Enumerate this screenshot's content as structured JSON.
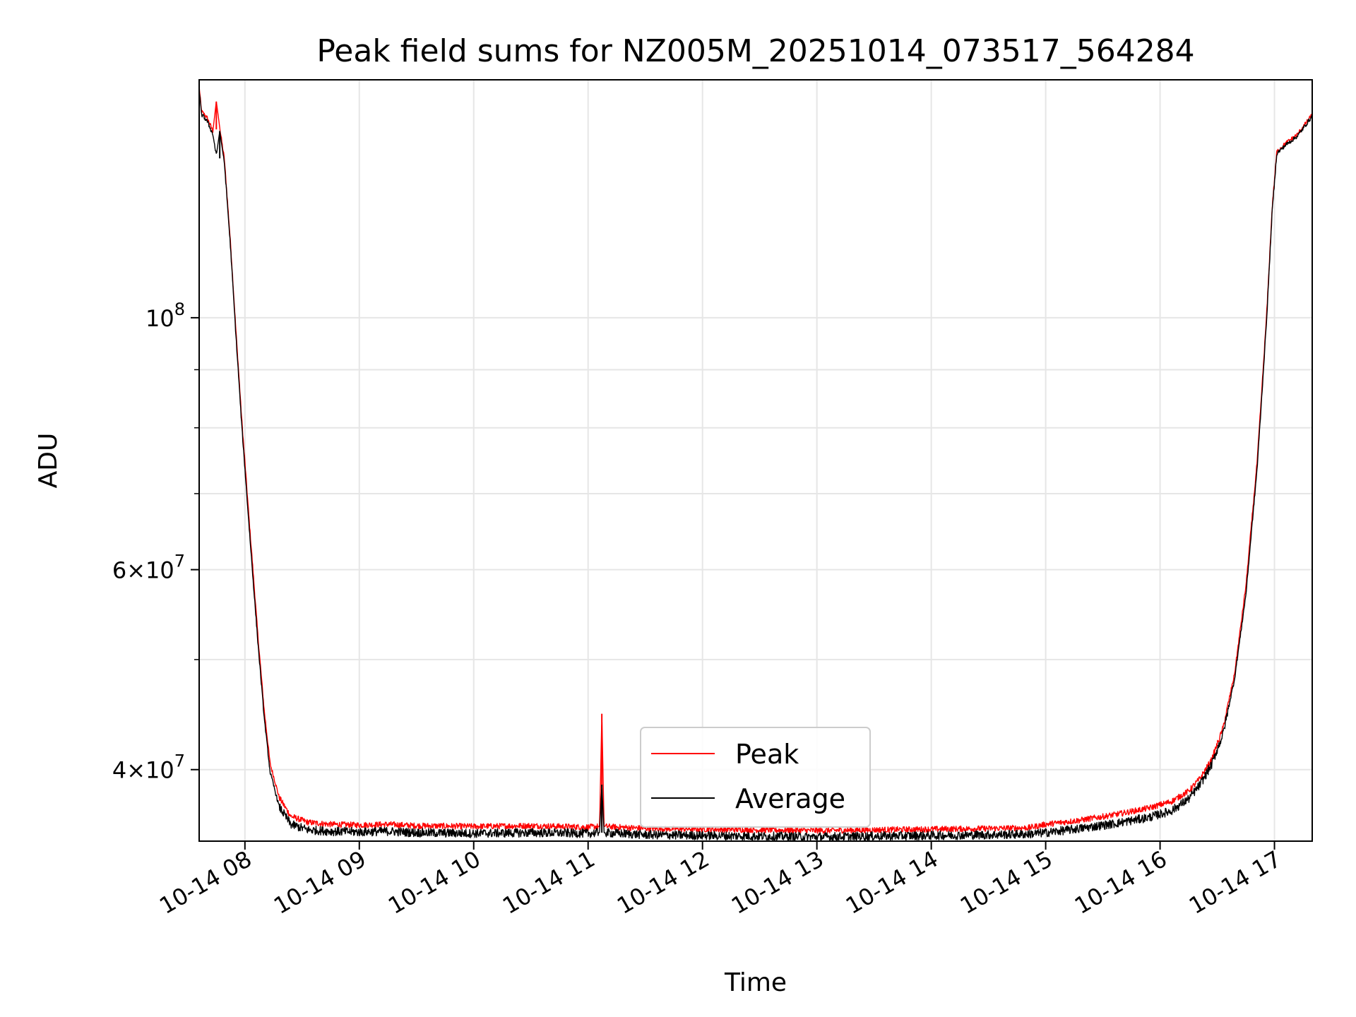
{
  "chart_data": {
    "type": "line",
    "title": "Peak field sums for NZ005M_20251014_073517_564284",
    "xlabel": "Time",
    "ylabel": "ADU",
    "yscale": "log",
    "ylim": [
      34600000,
      162000000
    ],
    "xlim": [
      7.6,
      17.33
    ],
    "grid": true,
    "legend_position": "lower-center",
    "x_ticks": [
      {
        "value": 8,
        "label": "10-14 08"
      },
      {
        "value": 9,
        "label": "10-14 09"
      },
      {
        "value": 10,
        "label": "10-14 10"
      },
      {
        "value": 11,
        "label": "10-14 11"
      },
      {
        "value": 12,
        "label": "10-14 12"
      },
      {
        "value": 13,
        "label": "10-14 13"
      },
      {
        "value": 14,
        "label": "10-14 14"
      },
      {
        "value": 15,
        "label": "10-14 15"
      },
      {
        "value": 16,
        "label": "10-14 16"
      },
      {
        "value": 17,
        "label": "10-14 17"
      }
    ],
    "y_major_ticks": [
      {
        "value": 100000000,
        "base": "10",
        "exp": "8",
        "mantissa": ""
      },
      {
        "value": 60000000,
        "base": "10",
        "exp": "7",
        "mantissa": "6"
      },
      {
        "value": 40000000,
        "base": "10",
        "exp": "7",
        "mantissa": "4"
      }
    ],
    "y_minor_ticks": [
      50000000,
      70000000,
      80000000,
      90000000
    ],
    "series": [
      {
        "name": "Peak",
        "color": "#ff0000",
        "points": [
          [
            7.6,
            160000000
          ],
          [
            7.62,
            152000000
          ],
          [
            7.67,
            150000000
          ],
          [
            7.72,
            146000000
          ],
          [
            7.75,
            155000000
          ],
          [
            7.78,
            147000000
          ],
          [
            7.82,
            138000000
          ],
          [
            7.87,
            118000000
          ],
          [
            7.92,
            98000000
          ],
          [
            7.97,
            82000000
          ],
          [
            8.02,
            70000000
          ],
          [
            8.07,
            60000000
          ],
          [
            8.12,
            51500000
          ],
          [
            8.17,
            45000000
          ],
          [
            8.22,
            40500000
          ],
          [
            8.3,
            37800000
          ],
          [
            8.4,
            36400000
          ],
          [
            8.55,
            35950000
          ],
          [
            8.75,
            35800000
          ],
          [
            9.0,
            35750000
          ],
          [
            9.25,
            35800000
          ],
          [
            9.5,
            35700000
          ],
          [
            10.0,
            35650000
          ],
          [
            10.5,
            35700000
          ],
          [
            11.0,
            35600000
          ],
          [
            11.1,
            35650000
          ],
          [
            11.12,
            44800000
          ],
          [
            11.14,
            35650000
          ],
          [
            11.5,
            35500000
          ],
          [
            12.0,
            35450000
          ],
          [
            12.5,
            35400000
          ],
          [
            13.0,
            35350000
          ],
          [
            13.5,
            35400000
          ],
          [
            14.0,
            35450000
          ],
          [
            14.5,
            35500000
          ],
          [
            14.85,
            35550000
          ],
          [
            15.0,
            35800000
          ],
          [
            15.3,
            36100000
          ],
          [
            15.6,
            36500000
          ],
          [
            15.9,
            37000000
          ],
          [
            16.1,
            37500000
          ],
          [
            16.25,
            38300000
          ],
          [
            16.35,
            39300000
          ],
          [
            16.45,
            40800000
          ],
          [
            16.55,
            43500000
          ],
          [
            16.65,
            48500000
          ],
          [
            16.75,
            58000000
          ],
          [
            16.85,
            75000000
          ],
          [
            16.93,
            100000000
          ],
          [
            16.98,
            125000000
          ],
          [
            17.02,
            140000000
          ],
          [
            17.1,
            142500000
          ],
          [
            17.2,
            145000000
          ],
          [
            17.33,
            151000000
          ]
        ]
      },
      {
        "name": "Average",
        "color": "#000000",
        "points": [
          [
            7.6,
            159000000
          ],
          [
            7.62,
            151000000
          ],
          [
            7.67,
            149000000
          ],
          [
            7.72,
            145000000
          ],
          [
            7.75,
            139000000
          ],
          [
            7.78,
            146000000
          ],
          [
            7.82,
            137000000
          ],
          [
            7.87,
            117000000
          ],
          [
            7.92,
            97000000
          ],
          [
            7.97,
            81000000
          ],
          [
            8.02,
            69000000
          ],
          [
            8.07,
            59000000
          ],
          [
            8.12,
            50800000
          ],
          [
            8.17,
            44300000
          ],
          [
            8.22,
            39800000
          ],
          [
            8.3,
            37100000
          ],
          [
            8.4,
            35800000
          ],
          [
            8.55,
            35400000
          ],
          [
            8.75,
            35300000
          ],
          [
            9.0,
            35250000
          ],
          [
            9.25,
            35300000
          ],
          [
            9.5,
            35200000
          ],
          [
            10.0,
            35150000
          ],
          [
            10.5,
            35200000
          ],
          [
            11.0,
            35150000
          ],
          [
            11.1,
            35200000
          ],
          [
            11.12,
            38800000
          ],
          [
            11.14,
            35200000
          ],
          [
            11.5,
            35050000
          ],
          [
            12.0,
            35000000
          ],
          [
            12.5,
            34950000
          ],
          [
            13.0,
            34900000
          ],
          [
            13.5,
            34950000
          ],
          [
            14.0,
            35000000
          ],
          [
            14.5,
            35050000
          ],
          [
            14.85,
            35100000
          ],
          [
            15.0,
            35200000
          ],
          [
            15.3,
            35500000
          ],
          [
            15.6,
            35850000
          ],
          [
            15.9,
            36300000
          ],
          [
            16.1,
            36800000
          ],
          [
            16.25,
            37700000
          ],
          [
            16.35,
            38800000
          ],
          [
            16.45,
            40400000
          ],
          [
            16.55,
            43000000
          ],
          [
            16.65,
            48000000
          ],
          [
            16.75,
            57000000
          ],
          [
            16.85,
            74000000
          ],
          [
            16.93,
            99000000
          ],
          [
            16.98,
            124000000
          ],
          [
            17.02,
            139500000
          ],
          [
            17.1,
            142000000
          ],
          [
            17.2,
            144500000
          ],
          [
            17.33,
            150500000
          ]
        ]
      }
    ]
  }
}
